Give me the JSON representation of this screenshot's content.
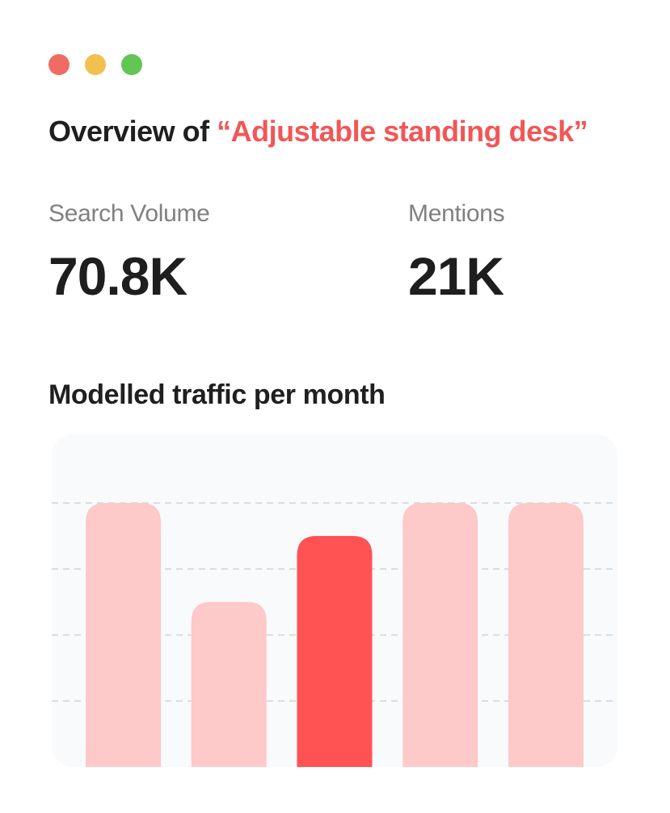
{
  "window": {
    "controls": [
      {
        "name": "close",
        "color": "#ef6b63"
      },
      {
        "name": "minimize",
        "color": "#f2c04e"
      },
      {
        "name": "maximize",
        "color": "#62c554"
      }
    ]
  },
  "overview": {
    "prefix": "Overview of ",
    "keyword": "“Adjustable standing desk”",
    "keyword_color": "#f25656"
  },
  "metrics": {
    "search_volume": {
      "label": "Search Volume",
      "value": "70.8K"
    },
    "mentions": {
      "label": "Mentions",
      "value": "21K"
    }
  },
  "chart_data": {
    "type": "bar",
    "title": "Modelled traffic per month",
    "categories": [
      "",
      "",
      "",
      "",
      ""
    ],
    "values": [
      4,
      2.5,
      3.5,
      4,
      4
    ],
    "ylim": [
      0,
      4
    ],
    "grid": true,
    "legend": "none",
    "highlight_index": 2,
    "colors": {
      "bar": "#fdc9c9",
      "highlight": "#ff5252",
      "grid": "#cfd3d9",
      "background": "#f9fafc"
    }
  }
}
